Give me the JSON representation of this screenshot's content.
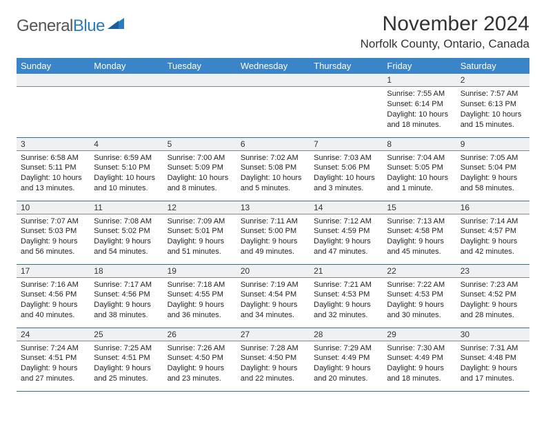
{
  "logo": {
    "text1": "General",
    "text2": "Blue"
  },
  "title": "November 2024",
  "location": "Norfolk County, Ontario, Canada",
  "day_headers": [
    "Sunday",
    "Monday",
    "Tuesday",
    "Wednesday",
    "Thursday",
    "Friday",
    "Saturday"
  ],
  "colors": {
    "header_bg": "#3a85c9",
    "header_fg": "#ffffff",
    "daynum_bg": "#eef0f2",
    "cell_border": "#3a6a9a",
    "logo_blue": "#2a7bbf"
  },
  "weeks": [
    [
      {
        "n": "",
        "sr": "",
        "ss": "",
        "dl": ""
      },
      {
        "n": "",
        "sr": "",
        "ss": "",
        "dl": ""
      },
      {
        "n": "",
        "sr": "",
        "ss": "",
        "dl": ""
      },
      {
        "n": "",
        "sr": "",
        "ss": "",
        "dl": ""
      },
      {
        "n": "",
        "sr": "",
        "ss": "",
        "dl": ""
      },
      {
        "n": "1",
        "sr": "Sunrise: 7:55 AM",
        "ss": "Sunset: 6:14 PM",
        "dl": "Daylight: 10 hours and 18 minutes."
      },
      {
        "n": "2",
        "sr": "Sunrise: 7:57 AM",
        "ss": "Sunset: 6:13 PM",
        "dl": "Daylight: 10 hours and 15 minutes."
      }
    ],
    [
      {
        "n": "3",
        "sr": "Sunrise: 6:58 AM",
        "ss": "Sunset: 5:11 PM",
        "dl": "Daylight: 10 hours and 13 minutes."
      },
      {
        "n": "4",
        "sr": "Sunrise: 6:59 AM",
        "ss": "Sunset: 5:10 PM",
        "dl": "Daylight: 10 hours and 10 minutes."
      },
      {
        "n": "5",
        "sr": "Sunrise: 7:00 AM",
        "ss": "Sunset: 5:09 PM",
        "dl": "Daylight: 10 hours and 8 minutes."
      },
      {
        "n": "6",
        "sr": "Sunrise: 7:02 AM",
        "ss": "Sunset: 5:08 PM",
        "dl": "Daylight: 10 hours and 5 minutes."
      },
      {
        "n": "7",
        "sr": "Sunrise: 7:03 AM",
        "ss": "Sunset: 5:06 PM",
        "dl": "Daylight: 10 hours and 3 minutes."
      },
      {
        "n": "8",
        "sr": "Sunrise: 7:04 AM",
        "ss": "Sunset: 5:05 PM",
        "dl": "Daylight: 10 hours and 1 minute."
      },
      {
        "n": "9",
        "sr": "Sunrise: 7:05 AM",
        "ss": "Sunset: 5:04 PM",
        "dl": "Daylight: 9 hours and 58 minutes."
      }
    ],
    [
      {
        "n": "10",
        "sr": "Sunrise: 7:07 AM",
        "ss": "Sunset: 5:03 PM",
        "dl": "Daylight: 9 hours and 56 minutes."
      },
      {
        "n": "11",
        "sr": "Sunrise: 7:08 AM",
        "ss": "Sunset: 5:02 PM",
        "dl": "Daylight: 9 hours and 54 minutes."
      },
      {
        "n": "12",
        "sr": "Sunrise: 7:09 AM",
        "ss": "Sunset: 5:01 PM",
        "dl": "Daylight: 9 hours and 51 minutes."
      },
      {
        "n": "13",
        "sr": "Sunrise: 7:11 AM",
        "ss": "Sunset: 5:00 PM",
        "dl": "Daylight: 9 hours and 49 minutes."
      },
      {
        "n": "14",
        "sr": "Sunrise: 7:12 AM",
        "ss": "Sunset: 4:59 PM",
        "dl": "Daylight: 9 hours and 47 minutes."
      },
      {
        "n": "15",
        "sr": "Sunrise: 7:13 AM",
        "ss": "Sunset: 4:58 PM",
        "dl": "Daylight: 9 hours and 45 minutes."
      },
      {
        "n": "16",
        "sr": "Sunrise: 7:14 AM",
        "ss": "Sunset: 4:57 PM",
        "dl": "Daylight: 9 hours and 42 minutes."
      }
    ],
    [
      {
        "n": "17",
        "sr": "Sunrise: 7:16 AM",
        "ss": "Sunset: 4:56 PM",
        "dl": "Daylight: 9 hours and 40 minutes."
      },
      {
        "n": "18",
        "sr": "Sunrise: 7:17 AM",
        "ss": "Sunset: 4:56 PM",
        "dl": "Daylight: 9 hours and 38 minutes."
      },
      {
        "n": "19",
        "sr": "Sunrise: 7:18 AM",
        "ss": "Sunset: 4:55 PM",
        "dl": "Daylight: 9 hours and 36 minutes."
      },
      {
        "n": "20",
        "sr": "Sunrise: 7:19 AM",
        "ss": "Sunset: 4:54 PM",
        "dl": "Daylight: 9 hours and 34 minutes."
      },
      {
        "n": "21",
        "sr": "Sunrise: 7:21 AM",
        "ss": "Sunset: 4:53 PM",
        "dl": "Daylight: 9 hours and 32 minutes."
      },
      {
        "n": "22",
        "sr": "Sunrise: 7:22 AM",
        "ss": "Sunset: 4:53 PM",
        "dl": "Daylight: 9 hours and 30 minutes."
      },
      {
        "n": "23",
        "sr": "Sunrise: 7:23 AM",
        "ss": "Sunset: 4:52 PM",
        "dl": "Daylight: 9 hours and 28 minutes."
      }
    ],
    [
      {
        "n": "24",
        "sr": "Sunrise: 7:24 AM",
        "ss": "Sunset: 4:51 PM",
        "dl": "Daylight: 9 hours and 27 minutes."
      },
      {
        "n": "25",
        "sr": "Sunrise: 7:25 AM",
        "ss": "Sunset: 4:51 PM",
        "dl": "Daylight: 9 hours and 25 minutes."
      },
      {
        "n": "26",
        "sr": "Sunrise: 7:26 AM",
        "ss": "Sunset: 4:50 PM",
        "dl": "Daylight: 9 hours and 23 minutes."
      },
      {
        "n": "27",
        "sr": "Sunrise: 7:28 AM",
        "ss": "Sunset: 4:50 PM",
        "dl": "Daylight: 9 hours and 22 minutes."
      },
      {
        "n": "28",
        "sr": "Sunrise: 7:29 AM",
        "ss": "Sunset: 4:49 PM",
        "dl": "Daylight: 9 hours and 20 minutes."
      },
      {
        "n": "29",
        "sr": "Sunrise: 7:30 AM",
        "ss": "Sunset: 4:49 PM",
        "dl": "Daylight: 9 hours and 18 minutes."
      },
      {
        "n": "30",
        "sr": "Sunrise: 7:31 AM",
        "ss": "Sunset: 4:48 PM",
        "dl": "Daylight: 9 hours and 17 minutes."
      }
    ]
  ]
}
